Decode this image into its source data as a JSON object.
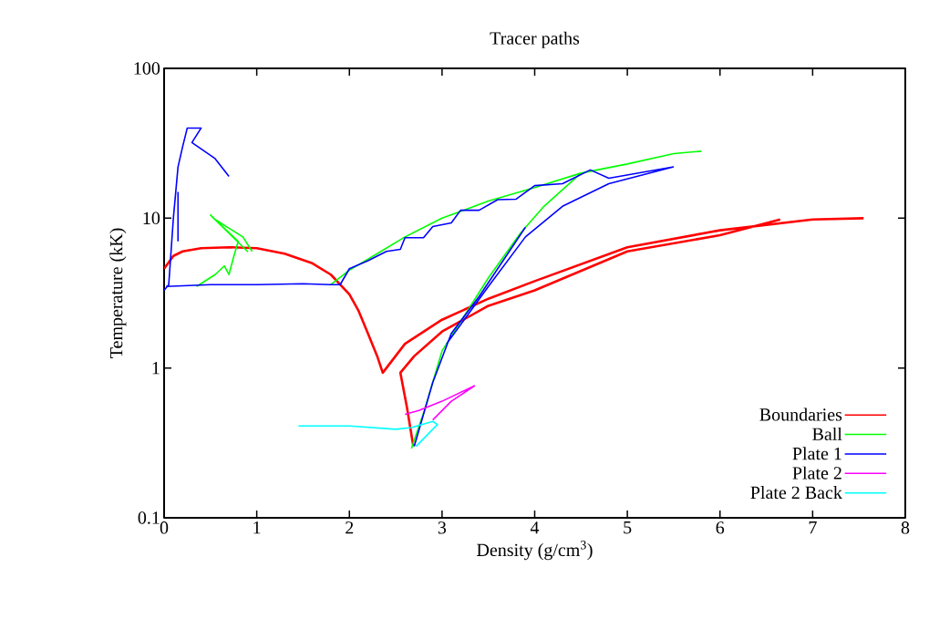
{
  "chart_data": {
    "type": "line",
    "title": "Tracer paths",
    "xlabel": "Density (g/cm$^{3}$)",
    "ylabel": "Temperature (kK)",
    "log": "y",
    "xlim": [
      0,
      8
    ],
    "ylim": [
      0.1,
      100
    ],
    "xticks": [
      0,
      1,
      2,
      3,
      4,
      5,
      6,
      7,
      8
    ],
    "yticks": [
      0.1,
      1,
      10,
      100
    ],
    "legend": "bottom right",
    "marker": "none",
    "series": [
      {
        "name": "Boundaries",
        "color": "#ff0000",
        "x": [
          0,
          0.1,
          0.2,
          0.4,
          0.7,
          1.0,
          1.3,
          1.6,
          1.8,
          2.0,
          2.1,
          2.2,
          2.3,
          2.36,
          2.6,
          3,
          3.5,
          4,
          5,
          6,
          7,
          7.55,
          null,
          2.69,
          2.62,
          2.57,
          2.55,
          2.7,
          3,
          3.5,
          4,
          5,
          6,
          6.65
        ],
        "values": [
          4.6,
          5.6,
          6.0,
          6.3,
          6.4,
          6.3,
          5.8,
          5.0,
          4.2,
          3.1,
          2.4,
          1.7,
          1.2,
          0.93,
          1.45,
          2.1,
          2.9,
          3.8,
          6.4,
          8.3,
          9.8,
          10,
          null,
          0.3,
          0.55,
          0.8,
          0.93,
          1.2,
          1.75,
          2.6,
          3.3,
          6.0,
          7.7,
          9.8
        ]
      },
      {
        "name": "Ball",
        "color": "#00ff00",
        "x": [
          0.35,
          0.55,
          0.65,
          0.7,
          0.75,
          0.8,
          0.5,
          0.9,
          0.55,
          0.85,
          0.95,
          null,
          1.8,
          2.0,
          2.3,
          2.6,
          3,
          3.5,
          4,
          4.5,
          5,
          5.5,
          5.8,
          null,
          2.67,
          2.8,
          3,
          3.5,
          3.85,
          4.1,
          4.5
        ],
        "values": [
          3.5,
          4.2,
          4.8,
          4.2,
          5.5,
          7,
          10.5,
          6,
          9.8,
          7.5,
          6.0,
          null,
          3.6,
          4.5,
          5.8,
          7.5,
          10,
          13,
          16,
          20,
          23,
          27,
          28,
          null,
          0.29,
          0.5,
          1.3,
          4,
          8,
          12,
          20
        ]
      },
      {
        "name": "Plate 1",
        "color": "#0000ff",
        "x": [
          0.0,
          0.05,
          0.1,
          0.15,
          0.2,
          0.25,
          0.4,
          0.3,
          0.55,
          0.7,
          null,
          0.15,
          0.15,
          null,
          0.02,
          0.5,
          1,
          1.5,
          1.8,
          1.9,
          2.0,
          2.2,
          2.4,
          2.55,
          2.6,
          2.8,
          2.9,
          3.1,
          3.2,
          3.4,
          3.6,
          3.8,
          4.0,
          4.3,
          4.6,
          4.8,
          5.5,
          null,
          2.7,
          2.9,
          3.1,
          3.4,
          3.9,
          null,
          3.05,
          3.5,
          3.9,
          4.3,
          4.8,
          5.5
        ],
        "values": [
          3.3,
          3.6,
          10,
          22,
          30,
          40,
          40,
          32,
          25,
          19,
          null,
          7,
          15,
          null,
          3.5,
          3.6,
          3.6,
          3.65,
          3.6,
          3.6,
          4.6,
          5.2,
          6.0,
          6.2,
          7.4,
          7.4,
          8.8,
          9.3,
          11.3,
          11.3,
          13.3,
          13.4,
          16.5,
          17,
          21,
          18.5,
          22,
          null,
          0.3,
          0.8,
          1.7,
          3,
          8.7,
          null,
          1.45,
          3.5,
          7.5,
          12,
          17,
          22
        ]
      },
      {
        "name": "Plate 2",
        "color": "#ff00ff",
        "x": [
          2.6,
          2.75,
          3.0,
          3.35,
          3.1,
          2.9
        ],
        "values": [
          0.49,
          0.52,
          0.6,
          0.76,
          0.6,
          0.45
        ]
      },
      {
        "name": "Plate 2 Back",
        "color": "#00ffff",
        "x": [
          1.45,
          2,
          2.5,
          2.67,
          2.9,
          2.95,
          2.72
        ],
        "values": [
          0.41,
          0.41,
          0.39,
          0.4,
          0.44,
          0.42,
          0.3
        ]
      }
    ]
  }
}
